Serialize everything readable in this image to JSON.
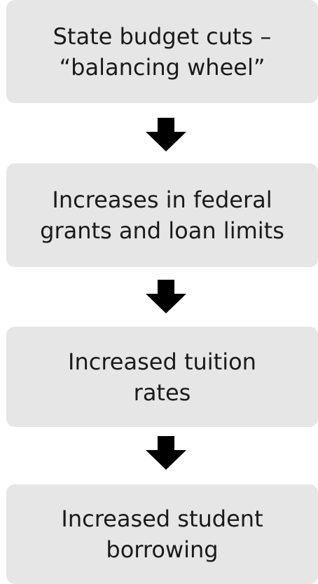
{
  "flowchart": {
    "steps": [
      {
        "label": "State budget cuts –\n“balancing wheel”"
      },
      {
        "label": "Increases in federal\ngrants and loan limits"
      },
      {
        "label": "Increased tuition\nrates"
      },
      {
        "label": "Increased student\nborrowing"
      }
    ],
    "box_color": "#e6e6e6",
    "arrow_color": "#000000"
  }
}
